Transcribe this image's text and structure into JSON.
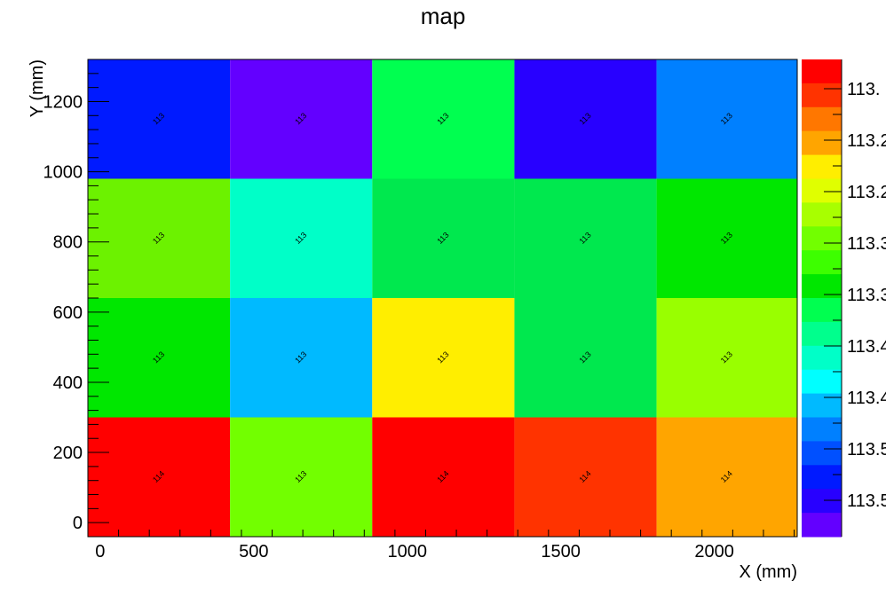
{
  "chart_data": {
    "type": "heatmap",
    "title": "map",
    "xlabel": "X (mm)",
    "ylabel": "Y (mm)",
    "xlim": [
      -40,
      2270
    ],
    "ylim": [
      -40,
      1320
    ],
    "x_bin_edges": [
      -40,
      423,
      886,
      1349,
      1812,
      2275
    ],
    "y_bin_edges": [
      -40,
      300,
      640,
      980,
      1320
    ],
    "x_ticks": [
      0,
      500,
      1000,
      1500,
      2000
    ],
    "y_ticks": [
      0,
      200,
      400,
      600,
      800,
      1000,
      1200
    ],
    "grid": false,
    "cells": [
      [
        114,
        113,
        114,
        114,
        114
      ],
      [
        113,
        113,
        113,
        113,
        113
      ],
      [
        113,
        113,
        113,
        113,
        113
      ],
      [
        113,
        113,
        113,
        113,
        113
      ]
    ],
    "cell_colors": [
      [
        "#ff0000",
        "#72ff00",
        "#ff0000",
        "#ff3300",
        "#ffa500"
      ],
      [
        "#00e700",
        "#00baff",
        "#ffee00",
        "#00e84e",
        "#99ff00"
      ],
      [
        "#6cf200",
        "#00ffc8",
        "#00e84e",
        "#00e84e",
        "#00e700"
      ],
      [
        "#001aff",
        "#6300ff",
        "#00ff50",
        "#2800ff",
        "#0080ff"
      ]
    ],
    "colorbar": {
      "tick_labels": [
        "113.",
        "113.2",
        "113.2",
        "113.3",
        "113.3",
        "113.4",
        "113.4",
        "113.5",
        "113.5"
      ],
      "colors": [
        "#ff0000",
        "#ff3300",
        "#ff7700",
        "#ffa500",
        "#ffee00",
        "#e0ff00",
        "#a8ff00",
        "#72ff00",
        "#3dff00",
        "#00e700",
        "#00ff50",
        "#00ff8d",
        "#00ffc8",
        "#00ffff",
        "#00baff",
        "#0080ff",
        "#0050ff",
        "#001aff",
        "#2800ff",
        "#6300ff"
      ]
    }
  }
}
